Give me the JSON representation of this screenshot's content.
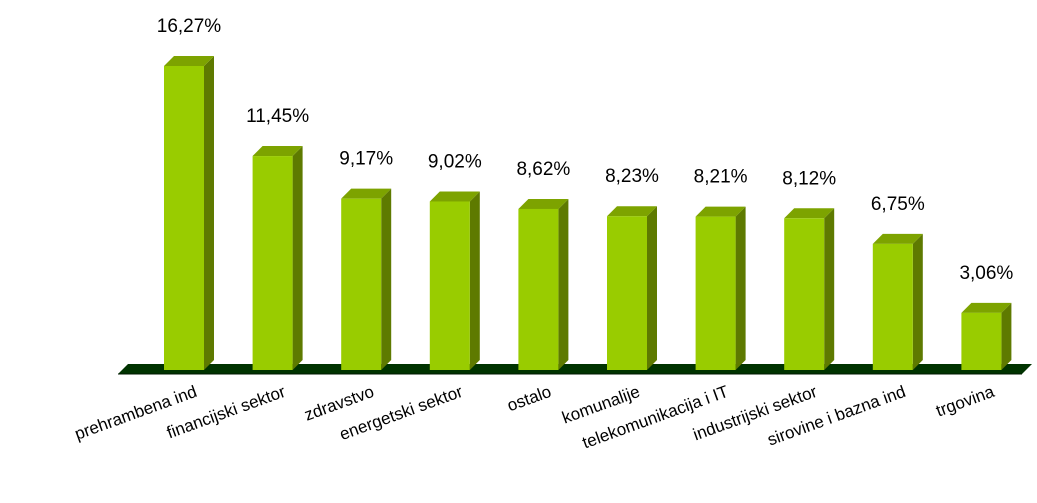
{
  "chart_data": {
    "type": "bar",
    "three_d": true,
    "categories": [
      "prehrambena ind",
      "financijski sektor",
      "zdravstvo",
      "energetski sektor",
      "ostalo",
      "komunalije",
      "telekomunikacija i IT",
      "industrijski sektor",
      "sirovine i bazna ind",
      "trgovina"
    ],
    "values": [
      16.27,
      11.45,
      9.17,
      9.02,
      8.62,
      8.23,
      8.21,
      8.12,
      6.75,
      3.06
    ],
    "value_labels": [
      "16,27%",
      "11,45%",
      "9,17%",
      "9,02%",
      "8,62%",
      "8,23%",
      "8,21%",
      "8,12%",
      "6,75%",
      "3,06%"
    ],
    "unit": "%",
    "title": "",
    "xlabel": "",
    "ylabel": "",
    "ylim": [
      0,
      16.27
    ],
    "grid": false,
    "legend": "none",
    "colors": {
      "bar_front": "#99CC00",
      "bar_side": "#5E7A00",
      "bar_top": "#7DA300",
      "floor": "#003300",
      "floor_edge": "#001A00"
    }
  }
}
